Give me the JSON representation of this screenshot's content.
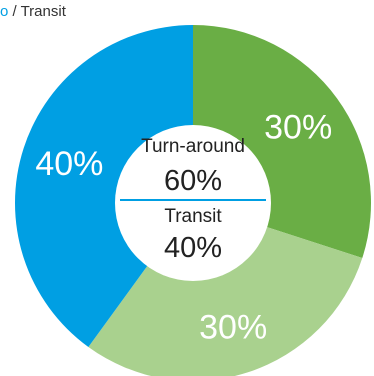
{
  "chart_data": {
    "type": "pie",
    "subtype": "donut",
    "legend_fragment": {
      "accent_text": "o",
      "text": " / Transit"
    },
    "slices": [
      {
        "label": "30%",
        "value": 30,
        "color": "#6aae45"
      },
      {
        "label": "30%",
        "value": 30,
        "color": "#a9d18e"
      },
      {
        "label": "40%",
        "value": 40,
        "color": "#009fe3"
      }
    ],
    "center": {
      "top_label": "Turn-around",
      "top_value": "60%",
      "bottom_label": "Transit",
      "bottom_value": "40%",
      "divider_color": "#009fe3"
    }
  }
}
